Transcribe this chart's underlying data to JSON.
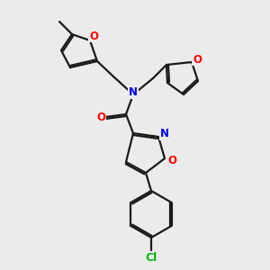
{
  "bg_color": "#ebebeb",
  "bond_color": "#1a1a1a",
  "atom_colors": {
    "O": "#ff0000",
    "N": "#0000ff",
    "Cl": "#00bb00",
    "C": "#1a1a1a"
  },
  "lw": 1.6
}
